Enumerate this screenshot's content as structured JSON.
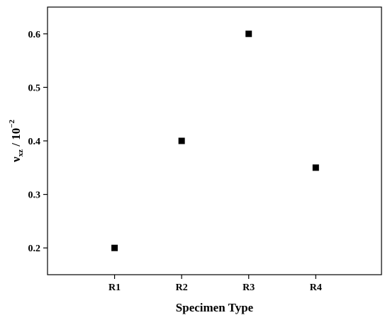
{
  "chart_data": {
    "type": "scatter",
    "categories": [
      "R1",
      "R2",
      "R3",
      "R4"
    ],
    "series": [
      {
        "values": [
          0.2,
          0.4,
          0.6,
          0.35
        ]
      }
    ],
    "xlabel": "Specimen Type",
    "ylabel": {
      "symbol": "ν",
      "subscript": "xz",
      "separator": " / 10",
      "exponent": "−2"
    },
    "ylim": [
      0.15,
      0.65
    ],
    "yticks": [
      0.2,
      0.3,
      0.4,
      0.5,
      0.6
    ],
    "ytick_labels": [
      "0.2",
      "0.3",
      "0.4",
      "0.5",
      "0.6"
    ],
    "grid": false,
    "marker": "square",
    "marker_color": "#000000"
  }
}
